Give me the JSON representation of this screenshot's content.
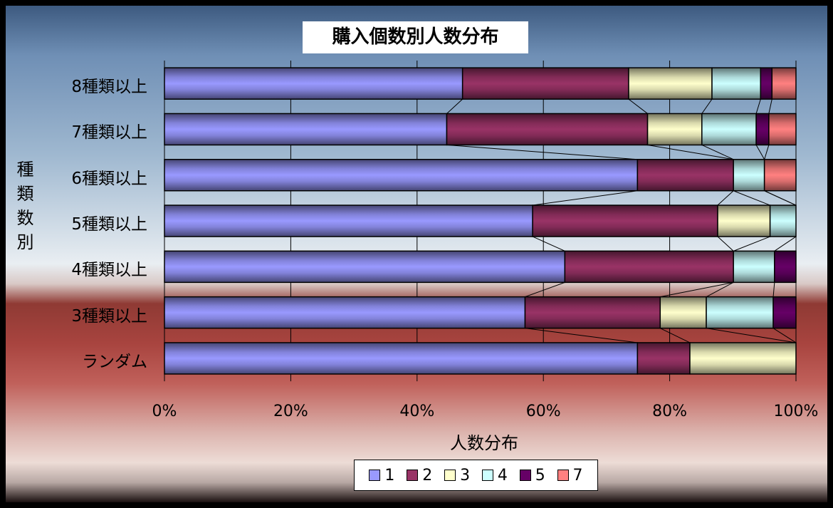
{
  "chart_data": {
    "type": "bar",
    "orientation": "horizontal",
    "stacked": "percent",
    "title": "購入個数別人数分布",
    "xlabel": "人数分布",
    "ylabel": "種類数別",
    "categories": [
      "8種類以上",
      "7種類以上",
      "6種類以上",
      "5種類以上",
      "4種類以上",
      "3種類以上",
      "ランダム"
    ],
    "xlim": [
      0,
      100
    ],
    "x_ticks": [
      "0%",
      "20%",
      "40%",
      "60%",
      "80%",
      "100%"
    ],
    "grid": true,
    "series_lines": true,
    "legend_position": "bottom",
    "series": [
      {
        "name": "1",
        "color": "#9999ff",
        "values": [
          47.2,
          44.7,
          74.9,
          58.3,
          63.4,
          57.1,
          74.9
        ]
      },
      {
        "name": "2",
        "color": "#993366",
        "values": [
          26.3,
          31.8,
          15.2,
          29.3,
          26.7,
          21.4,
          8.3
        ]
      },
      {
        "name": "3",
        "color": "#ffffcc",
        "values": [
          13.2,
          8.6,
          0,
          8.3,
          0,
          7.3,
          16.8
        ]
      },
      {
        "name": "4",
        "color": "#ccffff",
        "values": [
          7.7,
          8.6,
          4.9,
          4.1,
          6.5,
          10.6,
          0
        ]
      },
      {
        "name": "5",
        "color": "#660066",
        "values": [
          1.8,
          2.0,
          0,
          0,
          3.4,
          3.6,
          0
        ]
      },
      {
        "name": "7",
        "color": "#ff8080",
        "values": [
          3.8,
          4.3,
          5.0,
          0,
          0,
          0,
          0
        ]
      }
    ]
  }
}
